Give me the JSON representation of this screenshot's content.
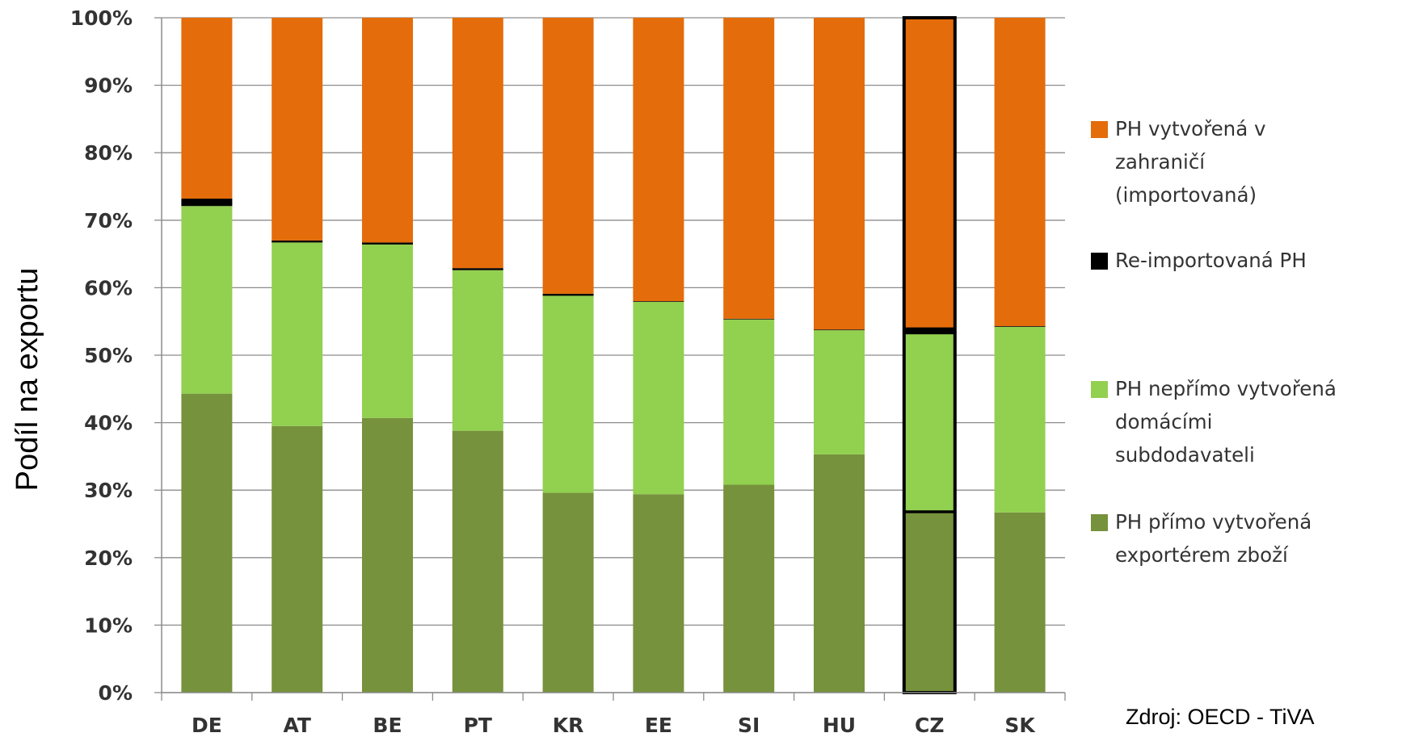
{
  "chart_data": {
    "type": "bar",
    "stacked": true,
    "normalized": true,
    "ylabel": "Podíl na exportu",
    "ylim": [
      0,
      100
    ],
    "ytick_labels": [
      "0%",
      "10%",
      "20%",
      "30%",
      "40%",
      "50%",
      "60%",
      "70%",
      "80%",
      "90%",
      "100%"
    ],
    "categories": [
      "DE",
      "AT",
      "BE",
      "PT",
      "KR",
      "EE",
      "SI",
      "HU",
      "CZ",
      "SK"
    ],
    "highlighted_category": "CZ",
    "series": [
      {
        "name": "PH přímo vytvořená exportérem zboží",
        "color": "#76923c",
        "values": [
          44.3,
          39.5,
          40.7,
          38.8,
          29.6,
          29.4,
          30.8,
          35.3,
          26.8,
          26.7
        ]
      },
      {
        "name": "PH nepřímo vytvořená domácími subdodavateli",
        "color": "#92d050",
        "values": [
          27.8,
          27.2,
          25.7,
          23.8,
          29.2,
          28.5,
          24.5,
          18.4,
          26.5,
          27.5
        ]
      },
      {
        "name": "Re-importovaná PH",
        "color": "#000000",
        "values": [
          1.1,
          0.3,
          0.3,
          0.3,
          0.3,
          0.1,
          0.1,
          0.1,
          0.6,
          0.1
        ]
      },
      {
        "name": "PH vytvořená v zahraničí (importovaná)",
        "color": "#e46c0a",
        "values": [
          26.8,
          33.0,
          33.3,
          37.1,
          40.9,
          42.0,
          44.6,
          46.2,
          46.1,
          45.7
        ]
      }
    ],
    "legend_position": "right",
    "legend": [
      {
        "lines": [
          "PH vytvořená v",
          "zahraničí",
          "(importovaná)"
        ],
        "color": "#e46c0a"
      },
      {
        "lines": [
          "Re-importovaná PH"
        ],
        "color": "#000000"
      },
      {
        "lines": [
          "PH nepřímo vytvořená",
          "domácími",
          "subdodavateli"
        ],
        "color": "#92d050"
      },
      {
        "lines": [
          "PH přímo vytvořená",
          "exportérem zboží"
        ],
        "color": "#76923c"
      }
    ],
    "source": "Zdroj: OECD - TiVA",
    "grid": true
  }
}
